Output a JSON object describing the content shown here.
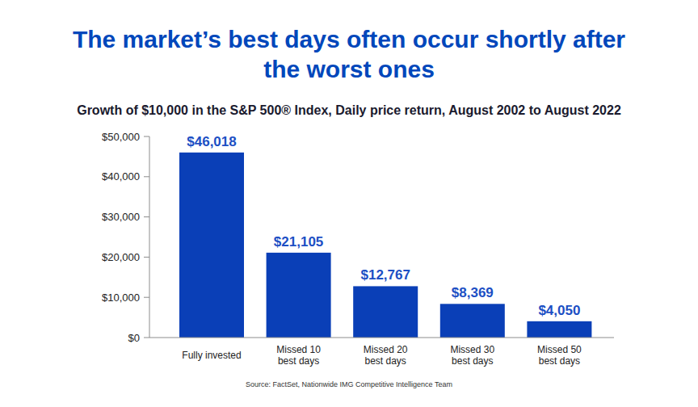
{
  "chart_data": {
    "type": "bar",
    "title": "The market’s best days often occur shortly after the worst ones",
    "subtitle": "Growth of $10,000 in the S&P 500® Index, Daily price return, August 2002 to August 2022",
    "source": "Source: FactSet, Nationwide IMG Competitive Intelligence Team",
    "categories": [
      "Fully invested",
      "Missed 10 best days",
      "Missed 20 best days",
      "Missed 30 best days",
      "Missed 50 best days"
    ],
    "values": [
      46018,
      21105,
      12767,
      8369,
      4050
    ],
    "value_labels": [
      "$46,018",
      "$21,105",
      "$12,767",
      "$8,369",
      "$4,050"
    ],
    "data_labels": true,
    "color": "#0a3fb7",
    "ylim": [
      0,
      50000
    ],
    "yticks": [
      {
        "value": 0,
        "label": "$0"
      },
      {
        "value": 10000,
        "label": "$10,000"
      },
      {
        "value": 20000,
        "label": "$20,000"
      },
      {
        "value": 30000,
        "label": "$30,000"
      },
      {
        "value": 40000,
        "label": "$40,000"
      },
      {
        "value": 50000,
        "label": "$50,000"
      }
    ],
    "grid": false
  }
}
